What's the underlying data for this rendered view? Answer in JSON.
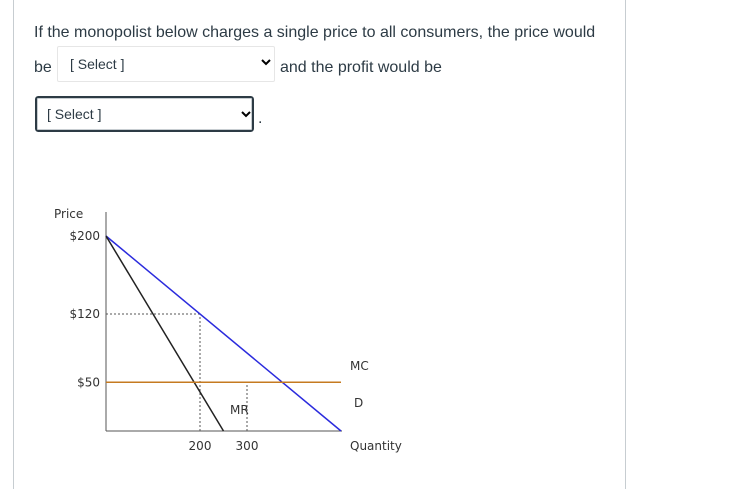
{
  "question": {
    "line1": "If the monopolist below charges a single price to all consumers, the price would",
    "line2_prefix": "be",
    "line2_middle": "and the profit would be",
    "end_punct": "."
  },
  "select_price": {
    "selected": "[ Select ]",
    "icon": "chevron-down-icon"
  },
  "select_profit": {
    "selected": "[ Select ]",
    "icon": "chevron-down-icon"
  },
  "colors": {
    "demand": "#2b2bdd",
    "mr": "#222222",
    "mc": "#c57a20",
    "axis": "#555555",
    "text": "#2d3b45"
  },
  "chart_data": {
    "type": "line",
    "ylabel": "Price",
    "xlabel": "Quantity",
    "ytick_labels": [
      "$200",
      "$120",
      "$50"
    ],
    "xtick_labels": [
      "200",
      "300"
    ],
    "xlim": [
      0,
      500
    ],
    "ylim": [
      0,
      200
    ],
    "series": [
      {
        "name": "D",
        "x": [
          0,
          500
        ],
        "y": [
          200,
          0
        ]
      },
      {
        "name": "MR",
        "x": [
          0,
          250
        ],
        "y": [
          200,
          0
        ]
      },
      {
        "name": "MC",
        "x": [
          0,
          500
        ],
        "y": [
          50,
          50
        ]
      }
    ],
    "dashed_guides": [
      {
        "x": [
          0,
          200
        ],
        "y": [
          120,
          120
        ]
      },
      {
        "x": [
          200,
          200
        ],
        "y": [
          0,
          120
        ]
      },
      {
        "x": [
          300,
          300
        ],
        "y": [
          0,
          50
        ]
      }
    ]
  }
}
